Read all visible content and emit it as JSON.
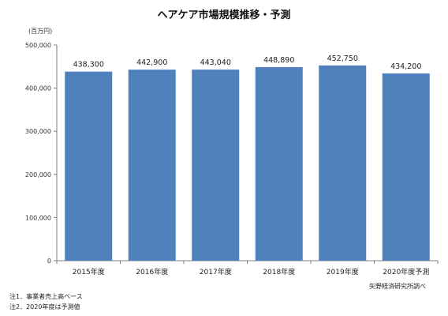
{
  "chart_data": {
    "type": "bar",
    "title": "ヘアケア市場規模推移・予測",
    "unit": "(百万円)",
    "categories": [
      "2015年度",
      "2016年度",
      "2017年度",
      "2018年度",
      "2019年度",
      "2020年度予測"
    ],
    "values": [
      438300,
      442900,
      443040,
      448890,
      452750,
      434200
    ],
    "value_labels": [
      "438,300",
      "442,900",
      "443,040",
      "448,890",
      "452,750",
      "434,200"
    ],
    "ylim": [
      0,
      500000
    ],
    "yticks": [
      0,
      100000,
      200000,
      300000,
      400000,
      500000
    ],
    "ytick_labels": [
      "0",
      "100,000",
      "200,000",
      "300,000",
      "400,000",
      "500,000"
    ],
    "xlabel": "",
    "ylabel": "",
    "grid": false,
    "legend": "none",
    "bar_color": "#4F81BD"
  },
  "notes": [
    "注1．事業者売上高ベース",
    "注2．2020年度は予測値"
  ],
  "source": "矢野経済研究所調べ"
}
